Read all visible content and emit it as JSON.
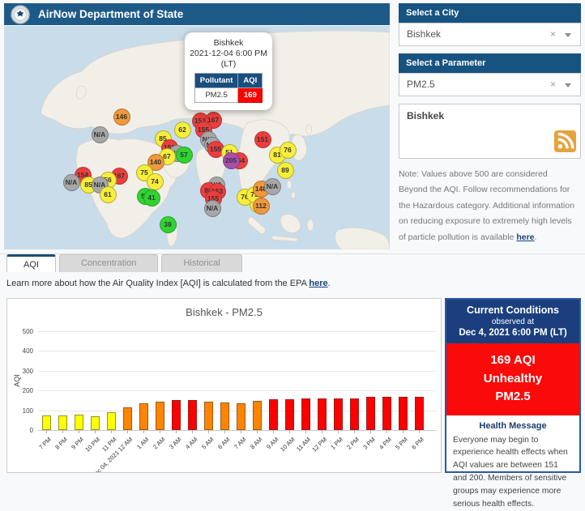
{
  "header": {
    "title": "AirNow Department of State"
  },
  "icons": {
    "clear": "×"
  },
  "map": {
    "popup": {
      "city": "Bishkek",
      "datetime": "2021-12-04 6:00 PM",
      "timezone": "(LT)",
      "pollutant_header": "Pollutant",
      "aqi_header": "AQI",
      "pollutant": "PM2.5",
      "aqi": "169"
    },
    "markers": [
      {
        "value": "146",
        "level": "orange",
        "x": 145,
        "y": 112
      },
      {
        "value": "N/A",
        "level": "na",
        "x": 118,
        "y": 134
      },
      {
        "value": "62",
        "level": "yellow",
        "x": 220,
        "y": 128
      },
      {
        "value": "85",
        "level": "yellow",
        "x": 196,
        "y": 139
      },
      {
        "value": "152",
        "level": "red",
        "x": 204,
        "y": 150
      },
      {
        "value": "N/A",
        "level": "na",
        "x": 213,
        "y": 157
      },
      {
        "value": "67",
        "level": "yellow",
        "x": 201,
        "y": 161
      },
      {
        "value": "57",
        "level": "green",
        "x": 222,
        "y": 159
      },
      {
        "value": "140",
        "level": "orange",
        "x": 187,
        "y": 168
      },
      {
        "value": "75",
        "level": "yellow",
        "x": 173,
        "y": 181
      },
      {
        "value": "74",
        "level": "yellow",
        "x": 186,
        "y": 192
      },
      {
        "value": "154",
        "level": "red",
        "x": 97,
        "y": 184
      },
      {
        "value": "N/A",
        "level": "na",
        "x": 83,
        "y": 193
      },
      {
        "value": "167",
        "level": "red",
        "x": 142,
        "y": 185
      },
      {
        "value": "56",
        "level": "yellow",
        "x": 128,
        "y": 190
      },
      {
        "value": "85",
        "level": "yellow",
        "x": 104,
        "y": 196
      },
      {
        "value": "N/A",
        "level": "na",
        "x": 118,
        "y": 196
      },
      {
        "value": "61",
        "level": "yellow",
        "x": 128,
        "y": 208
      },
      {
        "value": "55",
        "level": "green",
        "x": 174,
        "y": 210
      },
      {
        "value": "41",
        "level": "green",
        "x": 182,
        "y": 212
      },
      {
        "value": "38",
        "level": "green",
        "x": 202,
        "y": 245
      },
      {
        "value": "52",
        "level": "yellow",
        "x": 313,
        "y": 220
      },
      {
        "value": "N/A",
        "level": "na",
        "x": 262,
        "y": 196
      },
      {
        "value": "151",
        "level": "red",
        "x": 242,
        "y": 117
      },
      {
        "value": "167",
        "level": "red",
        "x": 258,
        "y": 116
      },
      {
        "value": "155",
        "level": "red",
        "x": 246,
        "y": 128
      },
      {
        "value": "N/A",
        "level": "na",
        "x": 252,
        "y": 140
      },
      {
        "value": "N/A",
        "level": "na",
        "x": 257,
        "y": 147
      },
      {
        "value": "155",
        "level": "red",
        "x": 261,
        "y": 152
      },
      {
        "value": "51",
        "level": "yellow",
        "x": 278,
        "y": 156
      },
      {
        "value": "164",
        "level": "red",
        "x": 290,
        "y": 166
      },
      {
        "value": "205",
        "level": "purple",
        "x": 280,
        "y": 166
      },
      {
        "value": "86",
        "level": "red",
        "x": 252,
        "y": 203
      },
      {
        "value": "153",
        "level": "red",
        "x": 263,
        "y": 204
      },
      {
        "value": "155",
        "level": "red",
        "x": 258,
        "y": 213
      },
      {
        "value": "N/A",
        "level": "na",
        "x": 257,
        "y": 225
      },
      {
        "value": "76",
        "level": "yellow",
        "x": 297,
        "y": 211
      },
      {
        "value": "75",
        "level": "yellow",
        "x": 309,
        "y": 208
      },
      {
        "value": "148",
        "level": "orange",
        "x": 317,
        "y": 201
      },
      {
        "value": "N/A",
        "level": "na",
        "x": 331,
        "y": 198
      },
      {
        "value": "112",
        "level": "orange",
        "x": 317,
        "y": 222
      },
      {
        "value": "151",
        "level": "red",
        "x": 319,
        "y": 140
      },
      {
        "value": "81",
        "level": "yellow",
        "x": 337,
        "y": 159
      },
      {
        "value": "76",
        "level": "yellow",
        "x": 350,
        "y": 153
      },
      {
        "value": "89",
        "level": "yellow",
        "x": 347,
        "y": 178
      }
    ]
  },
  "sidebar": {
    "city": {
      "label": "Select a City",
      "value": "Bishkek"
    },
    "parameter": {
      "label": "Select a Parameter",
      "value": "PM2.5"
    },
    "rss_title": "Bishkek",
    "note": {
      "prefix": "Note: Values above 500 are considered Beyond the AQI. Follow recommendations for the Hazardous category. Additional information on reducing exposure to extremely high levels of particle pollution is available ",
      "link": "here",
      "suffix": "."
    }
  },
  "tabs": [
    {
      "label": "AQI",
      "active": true
    },
    {
      "label": "Concentration",
      "active": false
    },
    {
      "label": "Historical",
      "active": false
    }
  ],
  "learn": {
    "prefix": "Learn more about how the Air Quality Index [AQI] is calculated from the EPA ",
    "link": "here",
    "suffix": "."
  },
  "chart_data": {
    "type": "bar",
    "title": "Bishkek - PM2.5",
    "xlabel": "",
    "ylabel": "AQI",
    "ylim": [
      0,
      500
    ],
    "yticks": [
      0,
      100,
      200,
      300,
      400,
      500
    ],
    "grid": true,
    "categories": [
      "7 PM",
      "8 PM",
      "9 PM",
      "10 PM",
      "11 PM",
      "Dec 04, 2021 12 AM",
      "1 AM",
      "2 AM",
      "3 AM",
      "4 AM",
      "5 AM",
      "6 AM",
      "7 AM",
      "8 AM",
      "9 AM",
      "10 AM",
      "11 AM",
      "12 PM",
      "1 PM",
      "2 PM",
      "3 PM",
      "4 PM",
      "5 PM",
      "6 PM"
    ],
    "values": [
      72,
      75,
      78,
      70,
      90,
      115,
      137,
      143,
      153,
      151,
      143,
      140,
      135,
      148,
      155,
      155,
      158,
      160,
      158,
      160,
      168,
      170,
      170,
      169
    ],
    "color_rule": "AQI category: <=100 yellow, 101-150 orange, 151-200 red"
  },
  "current_conditions": {
    "title": "Current Conditions",
    "subtitle": "observed at",
    "datetime": "Dec 4, 2021 6:00 PM (LT)",
    "aqi_line1": "169 AQI",
    "aqi_line2": "Unhealthy",
    "aqi_line3": "PM2.5",
    "health_title": "Health Message",
    "health_message": "Everyone may begin to experience health effects when AQI values are between 151 and 200. Members of sensitive groups may experience more serious health effects."
  },
  "colors": {
    "header_blue": "#1e5a88",
    "section_blue": "#175380",
    "navy": "#1b3f7e",
    "alert_red": "#fb0a0a",
    "link_blue": "#15437c",
    "aqi_scale": {
      "green": "#2ed52e",
      "yellow": "#f6ee3a",
      "orange": "#f0983ا",
      "red": "#ee3d3d",
      "purple": "#a84fae",
      "na": "#a7a7a7"
    },
    "bar_scale": {
      "yellow": "#ffff00",
      "orange": "#ff8400",
      "red": "#ff0000"
    }
  }
}
